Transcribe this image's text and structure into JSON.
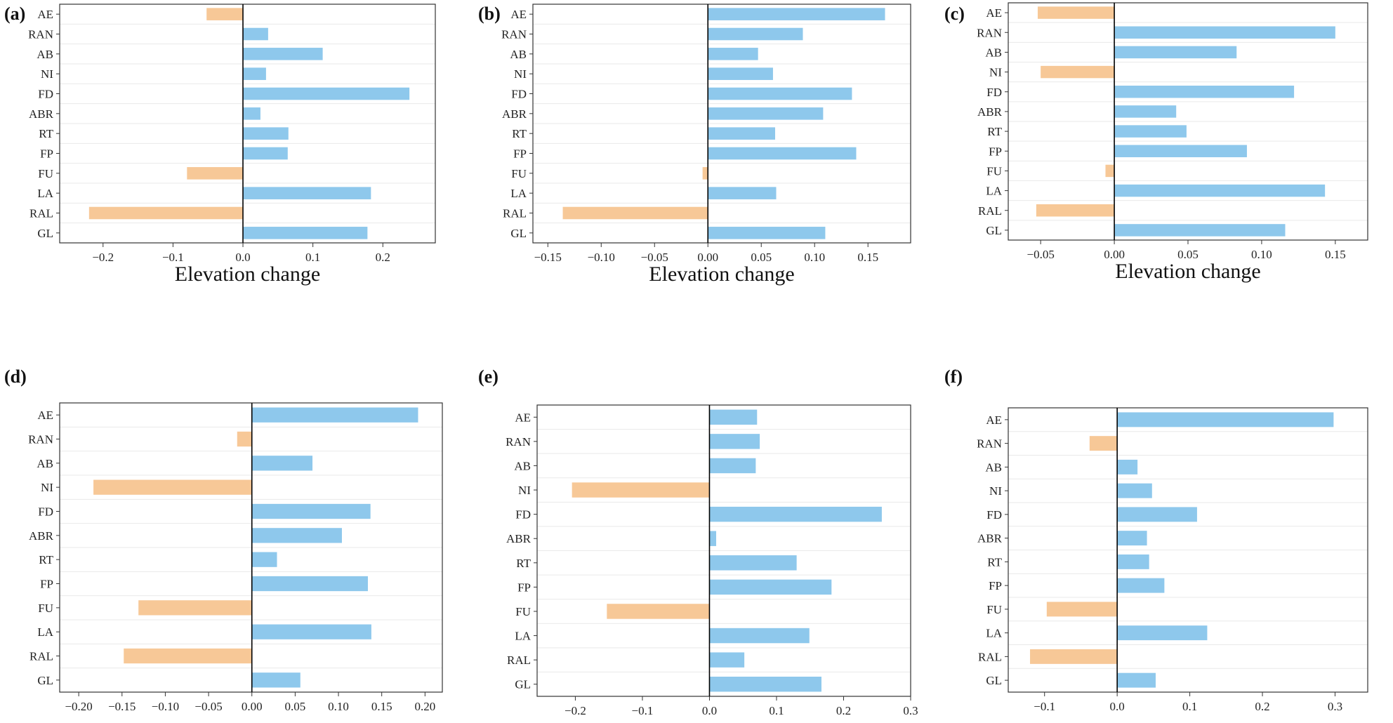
{
  "colors": {
    "positive": "#8ec8ec",
    "negative": "#f7c897",
    "grid": "#e9e9e9",
    "frame": "#333333"
  },
  "chart_data": [
    {
      "type": "bar",
      "orientation": "horizontal",
      "panel_label": "(a)",
      "categories": [
        "AE",
        "RAN",
        "AB",
        "NI",
        "FD",
        "ABR",
        "RT",
        "FP",
        "FU",
        "LA",
        "RAL",
        "GL"
      ],
      "values": [
        -0.052,
        0.036,
        0.114,
        0.033,
        0.238,
        0.025,
        0.065,
        0.064,
        -0.08,
        0.183,
        -0.22,
        0.178
      ],
      "xlim": [
        -0.262,
        0.275
      ],
      "xticks": [
        -0.2,
        -0.1,
        0.0,
        0.1,
        0.2
      ],
      "xtick_labels": [
        "−0.2",
        "−0.1",
        "0.0",
        "0.1",
        "0.2"
      ],
      "xlabel": "Elevation change"
    },
    {
      "type": "bar",
      "orientation": "horizontal",
      "panel_label": "(b)",
      "categories": [
        "AE",
        "RAN",
        "AB",
        "NI",
        "FD",
        "ABR",
        "RT",
        "FP",
        "FU",
        "LA",
        "RAL",
        "GL"
      ],
      "values": [
        0.166,
        0.089,
        0.047,
        0.061,
        0.135,
        0.108,
        0.063,
        0.139,
        -0.005,
        0.064,
        -0.136,
        0.11
      ],
      "xlim": [
        -0.164,
        0.19
      ],
      "xticks": [
        -0.15,
        -0.1,
        -0.05,
        0.0,
        0.05,
        0.1,
        0.15
      ],
      "xtick_labels": [
        "−0.15",
        "−0.10",
        "−0.05",
        "0.00",
        "0.05",
        "0.10",
        "0.15"
      ],
      "xlabel": "Elevation change"
    },
    {
      "type": "bar",
      "orientation": "horizontal",
      "panel_label": "(c)",
      "categories": [
        "AE",
        "RAN",
        "AB",
        "NI",
        "FD",
        "ABR",
        "RT",
        "FP",
        "FU",
        "LA",
        "RAL",
        "GL"
      ],
      "values": [
        -0.052,
        0.15,
        0.083,
        -0.05,
        0.122,
        0.042,
        0.049,
        0.09,
        -0.006,
        0.143,
        -0.053,
        0.116
      ],
      "xlim": [
        -0.072,
        0.172
      ],
      "xticks": [
        -0.05,
        0.0,
        0.05,
        0.1,
        0.15
      ],
      "xtick_labels": [
        "−0.05",
        "0.00",
        "0.05",
        "0.10",
        "0.15"
      ],
      "xlabel": "Elevation change"
    },
    {
      "type": "bar",
      "orientation": "horizontal",
      "panel_label": "(d)",
      "categories": [
        "AE",
        "RAN",
        "AB",
        "NI",
        "FD",
        "ABR",
        "RT",
        "FP",
        "FU",
        "LA",
        "RAL",
        "GL"
      ],
      "values": [
        0.192,
        -0.017,
        0.07,
        -0.183,
        0.137,
        0.104,
        0.029,
        0.134,
        -0.131,
        0.138,
        -0.148,
        0.056
      ],
      "xlim": [
        -0.222,
        0.22
      ],
      "xticks": [
        -0.2,
        -0.15,
        -0.1,
        -0.05,
        0.0,
        0.05,
        0.1,
        0.15,
        0.2
      ],
      "xtick_labels": [
        "−0.20",
        "−0.15",
        "−0.10",
        "−0.05",
        "0.00",
        "0.05",
        "0.10",
        "0.15",
        "0.20"
      ],
      "xlabel": ""
    },
    {
      "type": "bar",
      "orientation": "horizontal",
      "panel_label": "(e)",
      "categories": [
        "AE",
        "RAN",
        "AB",
        "NI",
        "FD",
        "ABR",
        "RT",
        "FP",
        "FU",
        "LA",
        "RAL",
        "GL"
      ],
      "values": [
        0.071,
        0.075,
        0.069,
        -0.205,
        0.257,
        0.01,
        0.13,
        0.182,
        -0.153,
        0.149,
        0.052,
        0.167
      ],
      "xlim": [
        -0.257,
        0.3
      ],
      "xticks": [
        -0.2,
        -0.1,
        0.0,
        0.1,
        0.2,
        0.3
      ],
      "xtick_labels": [
        "−0.2",
        "−0.1",
        "0.0",
        "0.1",
        "0.2",
        "0.3"
      ],
      "xlabel": ""
    },
    {
      "type": "bar",
      "orientation": "horizontal",
      "panel_label": "(f)",
      "categories": [
        "AE",
        "RAN",
        "AB",
        "NI",
        "FD",
        "ABR",
        "RT",
        "FP",
        "FU",
        "LA",
        "RAL",
        "GL"
      ],
      "values": [
        0.298,
        -0.038,
        0.028,
        0.048,
        0.11,
        0.041,
        0.044,
        0.065,
        -0.097,
        0.124,
        -0.12,
        0.053
      ],
      "xlim": [
        -0.15,
        0.345
      ],
      "xticks": [
        -0.1,
        0.0,
        0.1,
        0.2,
        0.3
      ],
      "xtick_labels": [
        "−0.1",
        "0.0",
        "0.1",
        "0.2",
        "0.3"
      ],
      "xlabel": ""
    }
  ]
}
